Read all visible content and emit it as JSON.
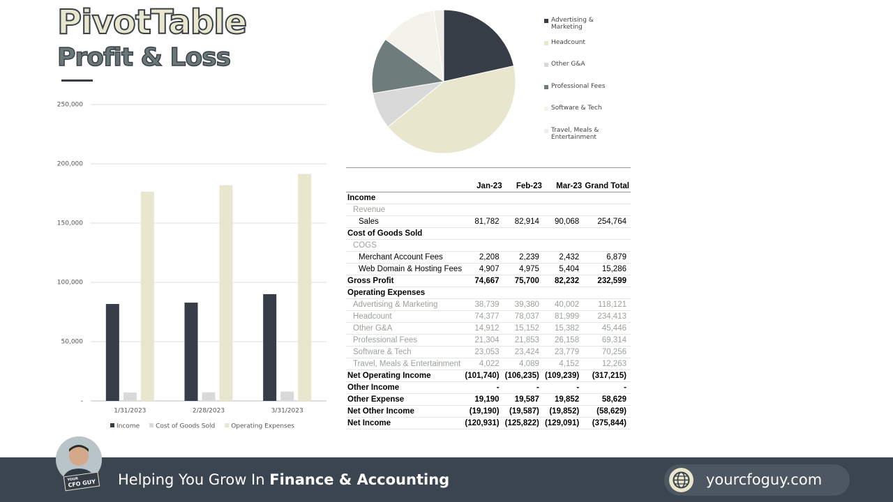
{
  "header": {
    "title": "PivotTable",
    "subtitle": "Profit & Loss"
  },
  "chart_data": [
    {
      "type": "bar",
      "categories": [
        "1/31/2023",
        "2/28/2023",
        "3/31/2023"
      ],
      "series": [
        {
          "name": "Income",
          "color": "#363d47",
          "values": [
            81782,
            82914,
            90068
          ]
        },
        {
          "name": "Cost of Goods Sold",
          "color": "#d9d9d9",
          "values": [
            7115,
            7214,
            7836
          ]
        },
        {
          "name": "Operating Expenses",
          "color": "#e8e6cc",
          "values": [
            176407,
            181935,
            191472
          ]
        }
      ],
      "ylim": [
        0,
        250000
      ],
      "yticks": [
        {
          "value": 0,
          "label": "-"
        },
        {
          "value": 50000,
          "label": "50,000"
        },
        {
          "value": 100000,
          "label": "100,000"
        },
        {
          "value": 150000,
          "label": "150,000"
        },
        {
          "value": 200000,
          "label": "200,000"
        },
        {
          "value": 250000,
          "label": "250,000"
        }
      ],
      "grid": true,
      "legend": "bottom"
    },
    {
      "type": "pie",
      "categories": [
        "Advertising & Marketing",
        "Headcount",
        "Other G&A",
        "Professional Fees",
        "Software & Tech",
        "Travel, Meals & Entertainment"
      ],
      "values": [
        118121,
        234413,
        45446,
        69314,
        70256,
        12263
      ],
      "colors": [
        "#363d47",
        "#e8e6cc",
        "#d9d9d9",
        "#6f7c7c",
        "#f3f3ec",
        "#efeee9"
      ],
      "legend": "right"
    }
  ],
  "table": {
    "columns": [
      "Jan-23",
      "Feb-23",
      "Mar-23",
      "Grand Total"
    ],
    "rows": [
      {
        "label": "Income",
        "style": "bold",
        "cells": []
      },
      {
        "label": "Revenue",
        "style": "muted-indent",
        "cells": []
      },
      {
        "label": "Sales",
        "style": "indent",
        "cells": [
          "81,782",
          "82,914",
          "90,068",
          "254,764"
        ]
      },
      {
        "label": "Cost of Goods Sold",
        "style": "bold",
        "cells": []
      },
      {
        "label": "COGS",
        "style": "muted-indent",
        "cells": []
      },
      {
        "label": "Merchant Account Fees",
        "style": "indent",
        "cells": [
          "2,208",
          "2,239",
          "2,432",
          "6,879"
        ]
      },
      {
        "label": "Web Domain & Hosting Fees",
        "style": "indent",
        "cells": [
          "4,907",
          "4,975",
          "5,404",
          "15,286"
        ]
      },
      {
        "label": "Gross Profit",
        "style": "bold",
        "cells": [
          "74,667",
          "75,700",
          "82,232",
          "232,599"
        ]
      },
      {
        "label": "Operating Expenses",
        "style": "bold",
        "cells": []
      },
      {
        "label": "Advertising & Marketing",
        "style": "muted",
        "cells": [
          "38,739",
          "39,380",
          "40,002",
          "118,121"
        ]
      },
      {
        "label": "Headcount",
        "style": "muted",
        "cells": [
          "74,377",
          "78,037",
          "81,999",
          "234,413"
        ]
      },
      {
        "label": "Other G&A",
        "style": "muted",
        "cells": [
          "14,912",
          "15,152",
          "15,382",
          "45,446"
        ]
      },
      {
        "label": "Professional Fees",
        "style": "muted",
        "cells": [
          "21,304",
          "21,853",
          "26,158",
          "69,314"
        ]
      },
      {
        "label": "Software & Tech",
        "style": "muted",
        "cells": [
          "23,053",
          "23,424",
          "23,779",
          "70,256"
        ]
      },
      {
        "label": "Travel, Meals & Entertainment",
        "style": "muted",
        "cells": [
          "4,022",
          "4,089",
          "4,152",
          "12,263"
        ]
      },
      {
        "label": "Net Operating Income",
        "style": "bold",
        "cells": [
          "(101,740)",
          "(106,235)",
          "(109,239)",
          "(317,215)"
        ]
      },
      {
        "label": "Other Income",
        "style": "bold",
        "cells": [
          "-",
          "-",
          "-",
          "-"
        ]
      },
      {
        "label": "Other Expense",
        "style": "bold",
        "cells": [
          "19,190",
          "19,587",
          "19,852",
          "58,629"
        ]
      },
      {
        "label": "Net Other Income",
        "style": "bold",
        "cells": [
          "(19,190)",
          "(19,587)",
          "(19,852)",
          "(58,629)"
        ]
      },
      {
        "label": "Net Income",
        "style": "bold",
        "cells": [
          "(120,931)",
          "(125,822)",
          "(129,091)",
          "(375,844)"
        ]
      }
    ]
  },
  "footer": {
    "badge_top": "YOUR",
    "badge": "CFO GUY",
    "tagline": "Helping You Grow In",
    "tagline_bold": "Finance & Accounting",
    "url": "yourcfoguy.com"
  }
}
